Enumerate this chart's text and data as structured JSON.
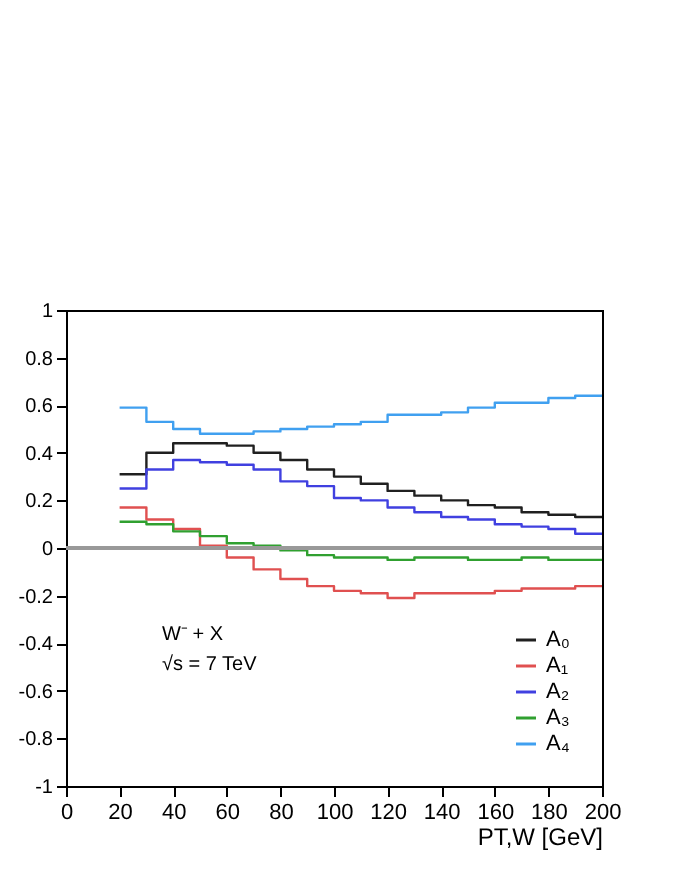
{
  "chart_data": {
    "type": "step",
    "xlabel": "PT,W [GeV]",
    "x": [
      20,
      30,
      40,
      50,
      60,
      70,
      80,
      90,
      100,
      110,
      120,
      130,
      140,
      150,
      160,
      170,
      180,
      190,
      200
    ],
    "series": [
      {
        "name": "A₀",
        "color": "#202020",
        "values": [
          0.31,
          0.4,
          0.44,
          0.44,
          0.43,
          0.4,
          0.37,
          0.33,
          0.3,
          0.27,
          0.24,
          0.22,
          0.2,
          0.18,
          0.17,
          0.15,
          0.14,
          0.13,
          0.13
        ]
      },
      {
        "name": "A₁",
        "color": "#e05050",
        "values": [
          0.17,
          0.12,
          0.08,
          0.01,
          -0.04,
          -0.09,
          -0.13,
          -0.16,
          -0.18,
          -0.19,
          -0.21,
          -0.19,
          -0.19,
          -0.19,
          -0.18,
          -0.17,
          -0.17,
          -0.16,
          -0.16
        ]
      },
      {
        "name": "A₂",
        "color": "#4040e0",
        "values": [
          0.25,
          0.33,
          0.37,
          0.36,
          0.35,
          0.33,
          0.28,
          0.26,
          0.21,
          0.2,
          0.17,
          0.15,
          0.13,
          0.12,
          0.1,
          0.09,
          0.08,
          0.06,
          0.06
        ]
      },
      {
        "name": "A₃",
        "color": "#30a030",
        "values": [
          0.11,
          0.1,
          0.07,
          0.05,
          0.02,
          0.01,
          -0.01,
          -0.03,
          -0.04,
          -0.04,
          -0.05,
          -0.04,
          -0.04,
          -0.05,
          -0.05,
          -0.04,
          -0.05,
          -0.05,
          -0.05
        ]
      },
      {
        "name": "A₄",
        "color": "#40a0f0",
        "values": [
          0.59,
          0.53,
          0.5,
          0.48,
          0.48,
          0.49,
          0.5,
          0.51,
          0.52,
          0.53,
          0.56,
          0.56,
          0.57,
          0.59,
          0.61,
          0.61,
          0.63,
          0.64,
          0.64
        ]
      }
    ],
    "xlim": [
      0,
      200
    ],
    "xticks": [
      0,
      20,
      40,
      60,
      80,
      100,
      120,
      140,
      160,
      180,
      200
    ],
    "ylim": [
      -1,
      1
    ],
    "yticks": [
      -1,
      -0.8,
      -0.6,
      -0.4,
      -0.2,
      0,
      0.2,
      0.4,
      0.6,
      0.8,
      1
    ],
    "ref_lines": [
      {
        "axis": "y",
        "value": 0,
        "color": "#999999"
      }
    ],
    "annotations": [
      "W⁻ + X",
      "√s = 7 TeV"
    ],
    "grid": false,
    "legend": "bottom right",
    "line_style": "solid",
    "marker": "none"
  }
}
